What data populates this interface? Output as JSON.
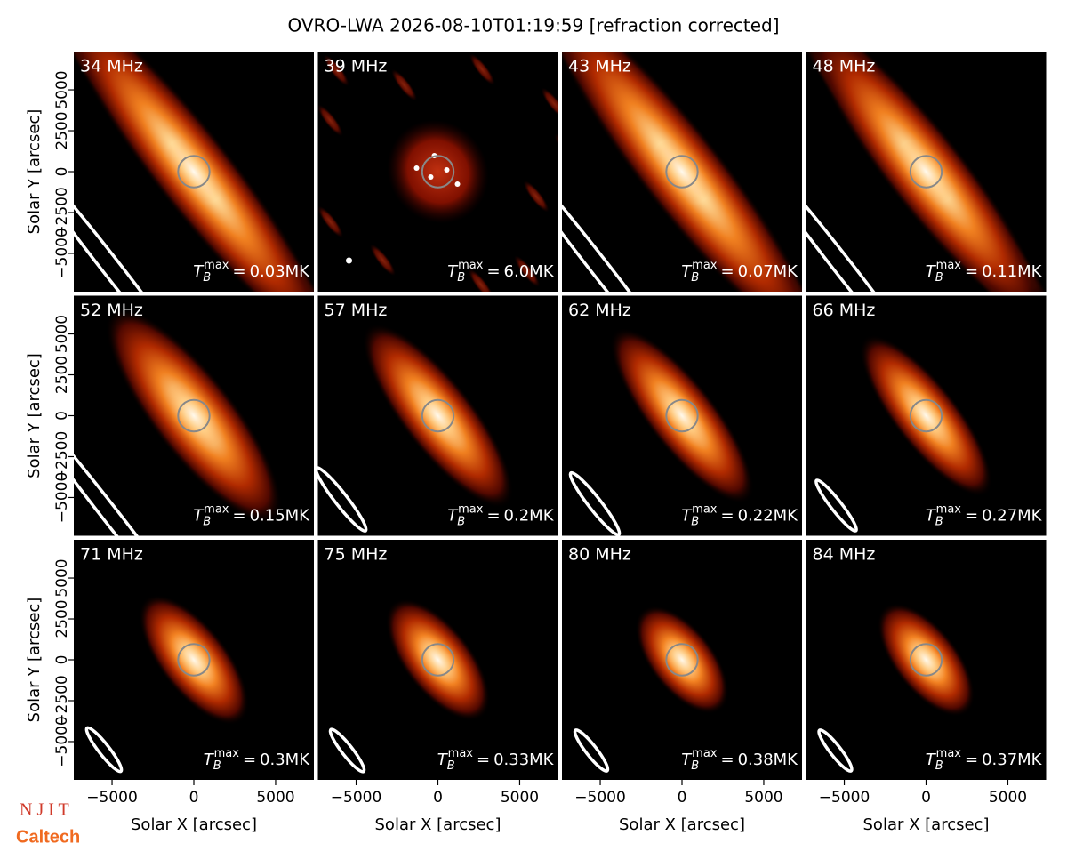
{
  "chart_data": {
    "type": "image-grid",
    "title": "OVRO-LWA 2026-08-10T01:19:59 [refraction corrected]",
    "xlabel": "Solar X [arcsec]",
    "ylabel": "Solar Y [arcsec]",
    "xlim": [
      -7340,
      7340
    ],
    "ylim": [
      -7340,
      7340
    ],
    "xticks": [
      {
        "value": -5000,
        "label": "−5000"
      },
      0,
      5000
    ],
    "yticks": [
      {
        "value": -5000,
        "label": "−5000"
      },
      {
        "value": -2500,
        "label": "−2500"
      },
      0,
      2500,
      5000
    ],
    "categories": [
      "34 MHz",
      "39 MHz",
      "43 MHz",
      "48 MHz",
      "52 MHz",
      "57 MHz",
      "62 MHz",
      "66 MHz",
      "71 MHz",
      "75 MHz",
      "80 MHz",
      "84 MHz"
    ],
    "values": [
      0.03,
      6.0,
      0.07,
      0.11,
      0.15,
      0.2,
      0.22,
      0.27,
      0.3,
      0.33,
      0.38,
      0.37
    ],
    "value_labels": [
      "0.03MK",
      "6.0MK",
      "0.07MK",
      "0.11MK",
      "0.15MK",
      "0.2MK",
      "0.22MK",
      "0.27MK",
      "0.3MK",
      "0.33MK",
      "0.38MK",
      "0.37MK"
    ],
    "value_symbol": "T",
    "value_symbol_sub": "B",
    "value_symbol_sup": "max",
    "value_equals": "="
  },
  "logos": [
    "N J I T",
    "Caltech"
  ]
}
